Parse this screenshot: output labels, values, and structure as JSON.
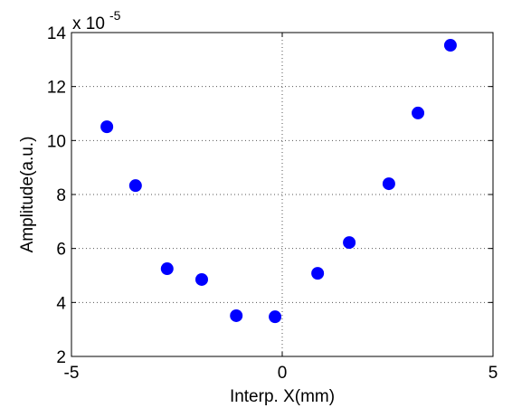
{
  "chart_data": {
    "type": "scatter",
    "x_label": "Interp. X(mm)",
    "y_label": "Amplitude(a.u.)",
    "y_exponent_label": {
      "base": "x 10",
      "exponent": "-5"
    },
    "series": [
      {
        "color": "#0000ff",
        "x": [
          -4.16,
          -3.48,
          -2.73,
          -1.91,
          -1.09,
          -0.17,
          0.84,
          1.59,
          2.53,
          3.22,
          3.99
        ],
        "values": [
          10.51,
          8.33,
          5.25,
          4.85,
          3.51,
          3.47,
          5.08,
          6.22,
          8.4,
          11.02,
          13.53
        ]
      }
    ],
    "xlim": [
      -5,
      5
    ],
    "xticks": [
      -5,
      0,
      5
    ],
    "ylim": [
      2,
      14
    ],
    "yticks": [
      2,
      4,
      6,
      8,
      10,
      12,
      14
    ],
    "grid": true
  }
}
